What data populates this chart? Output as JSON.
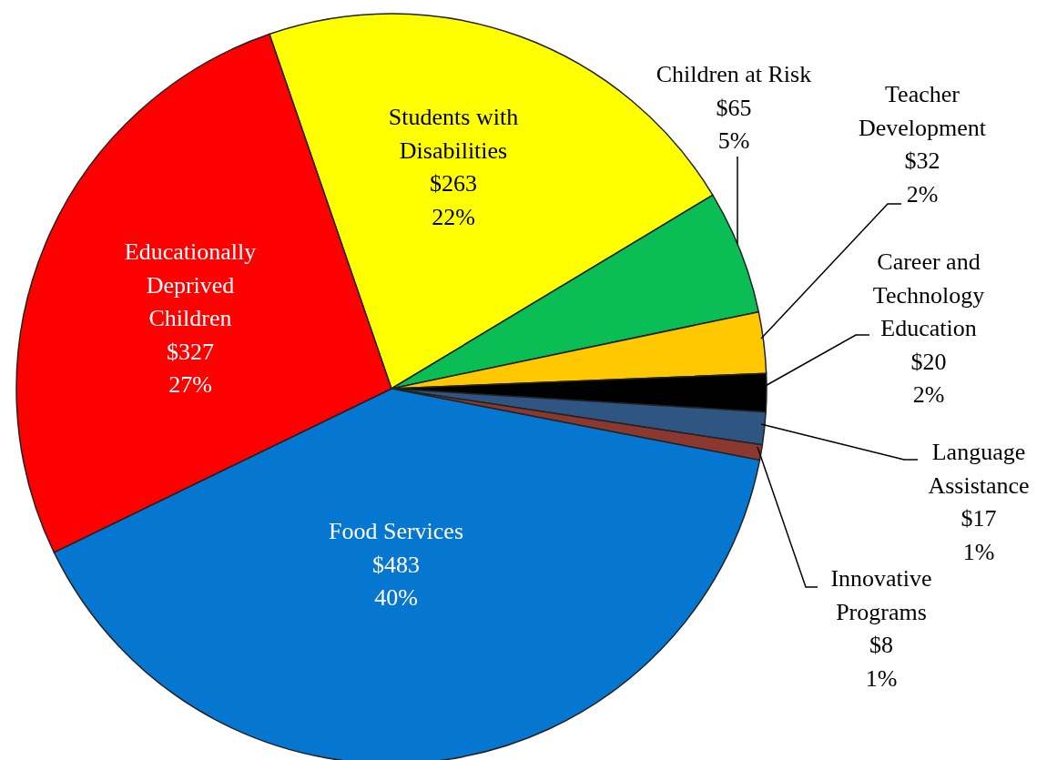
{
  "chart_data": {
    "type": "pie",
    "categories": [
      "Students with Disabilities",
      "Children at Risk",
      "Teacher Development",
      "Career and Technology Education",
      "Language Assistance",
      "Innovative Programs",
      "Food Services",
      "Educationally Deprived Children"
    ],
    "values": [
      263,
      65,
      32,
      20,
      17,
      8,
      483,
      327
    ],
    "colors": [
      "#ffff00",
      "#0bbd55",
      "#ffc800",
      "#000000",
      "#2f5583",
      "#8b3830",
      "#0677d0",
      "#ff0000"
    ],
    "value_labels": [
      "$263\n22%",
      "$65\n5%",
      "$32\n2%",
      "$20\n2%",
      "$17\n1%",
      "$8\n1%",
      "$483\n40%",
      "$327\n27%"
    ]
  }
}
